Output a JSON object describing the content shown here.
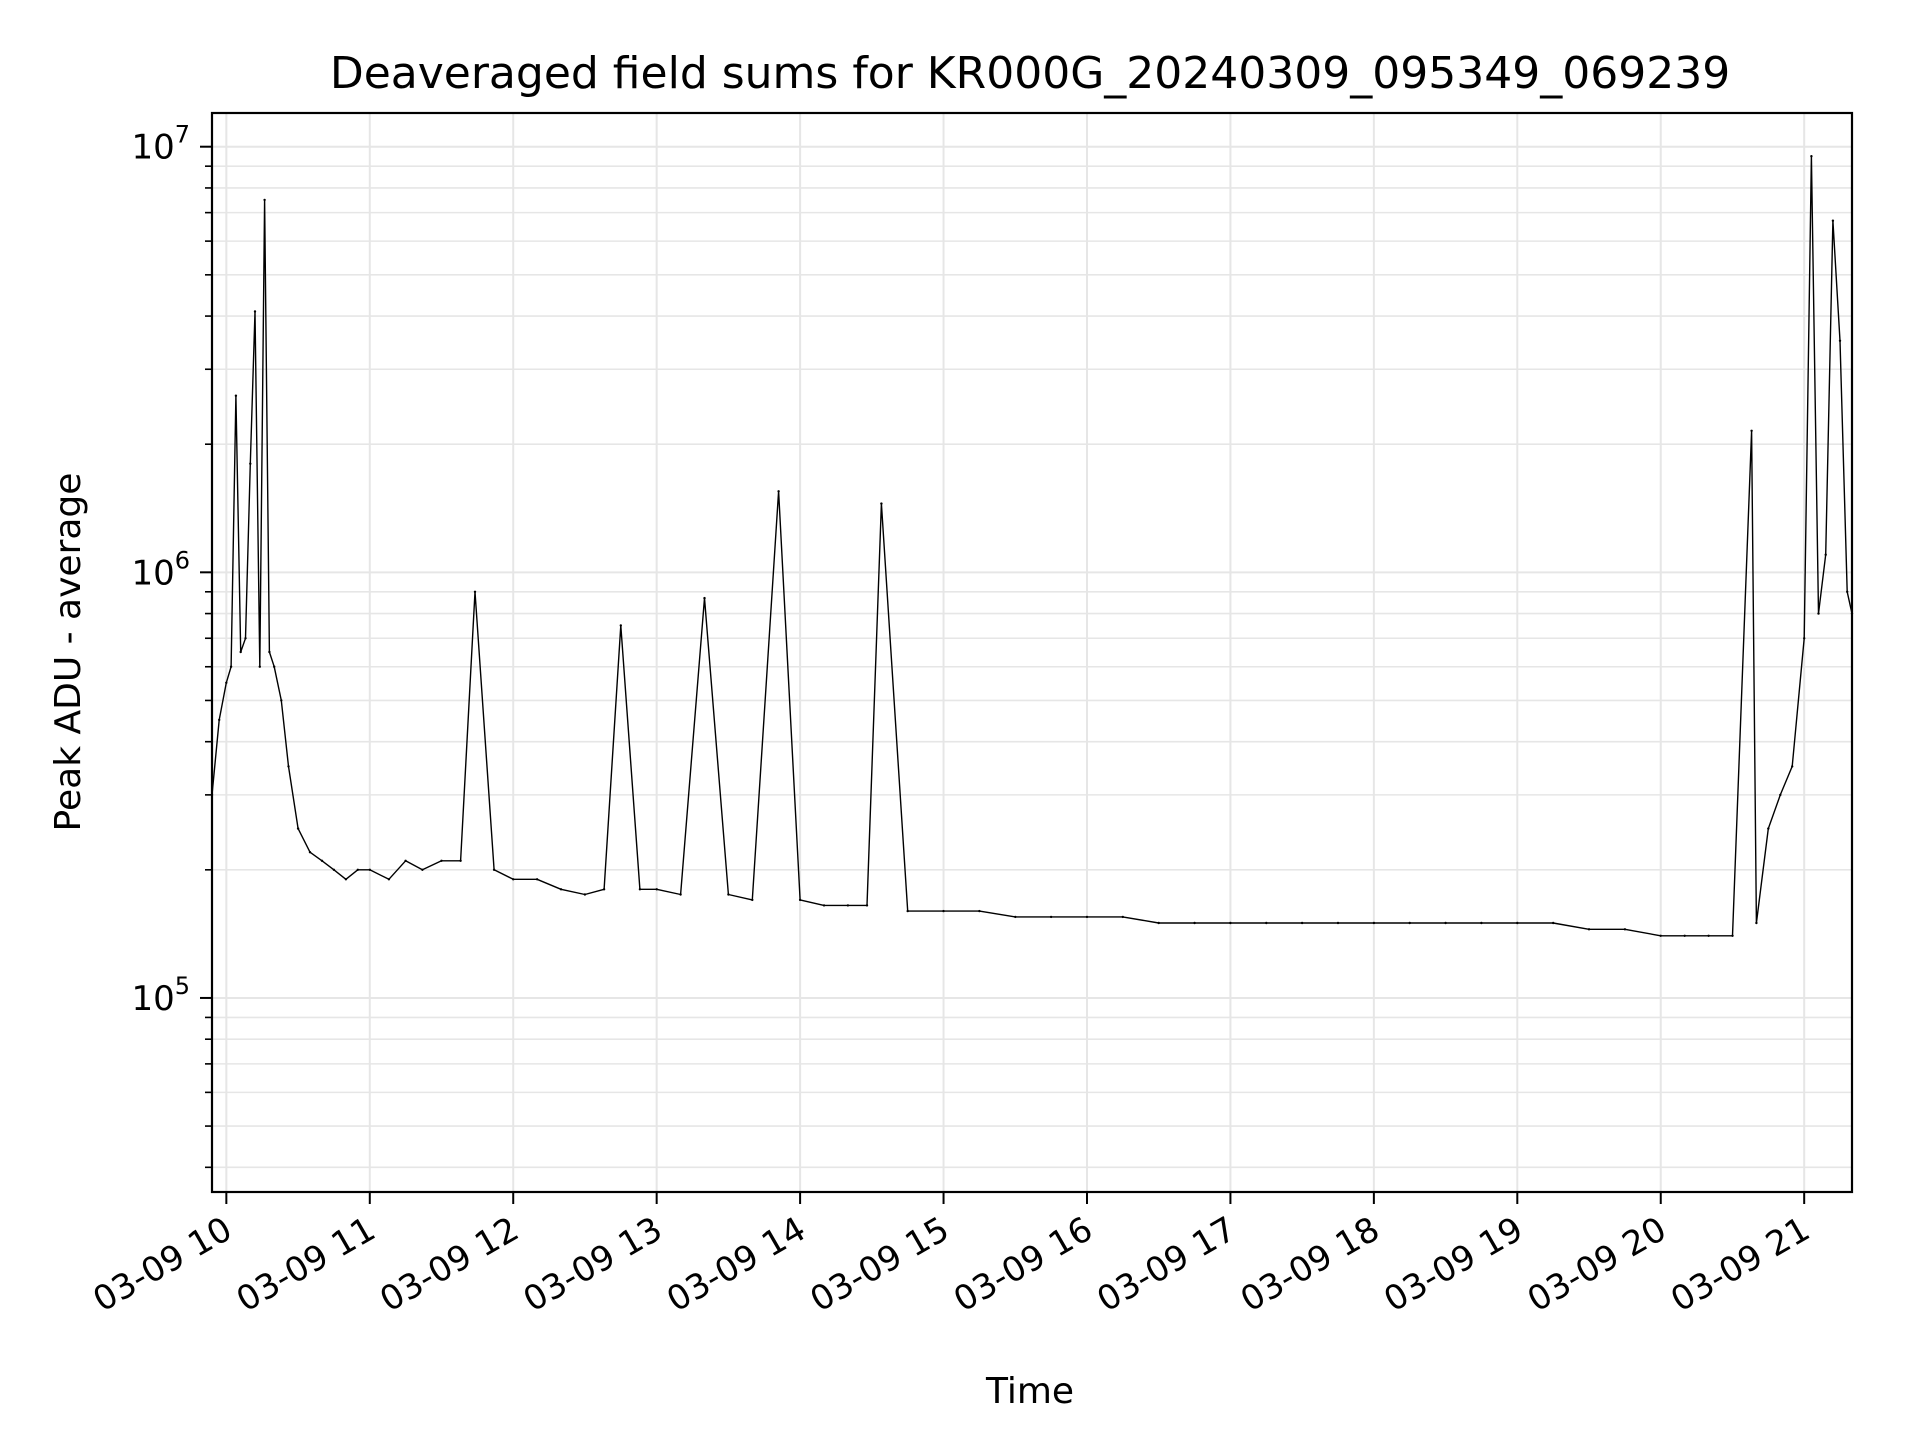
{
  "chart_data": {
    "type": "line",
    "title": "Deaveraged field sums for KR000G_20240309_095349_069239",
    "xlabel": "Time",
    "ylabel": "Peak ADU - average",
    "yscale": "log",
    "ylim": [
      35000,
      12000000
    ],
    "xlim": [
      "2024-03-09 09:54",
      "2024-03-09 21:20"
    ],
    "grid": true,
    "legend": "none",
    "line_color": "#000000",
    "grid_color": "#e6e6e6",
    "x_ticks": [
      {
        "t": "2024-03-09 10:00",
        "label": "03-09 10"
      },
      {
        "t": "2024-03-09 11:00",
        "label": "03-09 11"
      },
      {
        "t": "2024-03-09 12:00",
        "label": "03-09 12"
      },
      {
        "t": "2024-03-09 13:00",
        "label": "03-09 13"
      },
      {
        "t": "2024-03-09 14:00",
        "label": "03-09 14"
      },
      {
        "t": "2024-03-09 15:00",
        "label": "03-09 15"
      },
      {
        "t": "2024-03-09 16:00",
        "label": "03-09 16"
      },
      {
        "t": "2024-03-09 17:00",
        "label": "03-09 17"
      },
      {
        "t": "2024-03-09 18:00",
        "label": "03-09 18"
      },
      {
        "t": "2024-03-09 19:00",
        "label": "03-09 19"
      },
      {
        "t": "2024-03-09 20:00",
        "label": "03-09 20"
      },
      {
        "t": "2024-03-09 21:00",
        "label": "03-09 21"
      }
    ],
    "y_ticks": [
      {
        "value": 100000,
        "base": "10",
        "exp": "5"
      },
      {
        "value": 1000000,
        "base": "10",
        "exp": "6"
      },
      {
        "value": 10000000,
        "base": "10",
        "exp": "7"
      }
    ],
    "series": [
      {
        "x": [
          "2024-03-09 09:54",
          "2024-03-09 09:57",
          "2024-03-09 10:00",
          "2024-03-09 10:02",
          "2024-03-09 10:04",
          "2024-03-09 10:06",
          "2024-03-09 10:08",
          "2024-03-09 10:10",
          "2024-03-09 10:12",
          "2024-03-09 10:14",
          "2024-03-09 10:16",
          "2024-03-09 10:18",
          "2024-03-09 10:20",
          "2024-03-09 10:23",
          "2024-03-09 10:26",
          "2024-03-09 10:30",
          "2024-03-09 10:35",
          "2024-03-09 10:40",
          "2024-03-09 10:45",
          "2024-03-09 10:50",
          "2024-03-09 10:55",
          "2024-03-09 11:00",
          "2024-03-09 11:08",
          "2024-03-09 11:15",
          "2024-03-09 11:22",
          "2024-03-09 11:30",
          "2024-03-09 11:38",
          "2024-03-09 11:44",
          "2024-03-09 11:52",
          "2024-03-09 12:00",
          "2024-03-09 12:10",
          "2024-03-09 12:20",
          "2024-03-09 12:30",
          "2024-03-09 12:38",
          "2024-03-09 12:45",
          "2024-03-09 12:53",
          "2024-03-09 13:00",
          "2024-03-09 13:10",
          "2024-03-09 13:20",
          "2024-03-09 13:30",
          "2024-03-09 13:40",
          "2024-03-09 13:51",
          "2024-03-09 14:00",
          "2024-03-09 14:10",
          "2024-03-09 14:20",
          "2024-03-09 14:28",
          "2024-03-09 14:34",
          "2024-03-09 14:45",
          "2024-03-09 15:00",
          "2024-03-09 15:15",
          "2024-03-09 15:30",
          "2024-03-09 15:45",
          "2024-03-09 16:00",
          "2024-03-09 16:15",
          "2024-03-09 16:30",
          "2024-03-09 16:45",
          "2024-03-09 17:00",
          "2024-03-09 17:15",
          "2024-03-09 17:30",
          "2024-03-09 17:45",
          "2024-03-09 18:00",
          "2024-03-09 18:15",
          "2024-03-09 18:30",
          "2024-03-09 18:45",
          "2024-03-09 19:00",
          "2024-03-09 19:15",
          "2024-03-09 19:30",
          "2024-03-09 19:45",
          "2024-03-09 20:00",
          "2024-03-09 20:10",
          "2024-03-09 20:20",
          "2024-03-09 20:30",
          "2024-03-09 20:38",
          "2024-03-09 20:40",
          "2024-03-09 20:45",
          "2024-03-09 20:50",
          "2024-03-09 20:55",
          "2024-03-09 21:00",
          "2024-03-09 21:03",
          "2024-03-09 21:06",
          "2024-03-09 21:09",
          "2024-03-09 21:12",
          "2024-03-09 21:15",
          "2024-03-09 21:18",
          "2024-03-09 21:20"
        ],
        "y": [
          300000,
          450000,
          550000,
          600000,
          2600000,
          650000,
          700000,
          1800000,
          4100000,
          600000,
          7500000,
          650000,
          600000,
          500000,
          350000,
          250000,
          220000,
          210000,
          200000,
          190000,
          200000,
          200000,
          190000,
          210000,
          200000,
          210000,
          210000,
          900000,
          200000,
          190000,
          190000,
          180000,
          175000,
          180000,
          750000,
          180000,
          180000,
          175000,
          870000,
          175000,
          170000,
          1550000,
          170000,
          165000,
          165000,
          165000,
          1450000,
          160000,
          160000,
          160000,
          155000,
          155000,
          155000,
          155000,
          150000,
          150000,
          150000,
          150000,
          150000,
          150000,
          150000,
          150000,
          150000,
          150000,
          150000,
          150000,
          145000,
          145000,
          140000,
          140000,
          140000,
          140000,
          2150000,
          150000,
          250000,
          300000,
          350000,
          700000,
          9500000,
          800000,
          1100000,
          6700000,
          3500000,
          900000,
          800000
        ]
      }
    ]
  }
}
